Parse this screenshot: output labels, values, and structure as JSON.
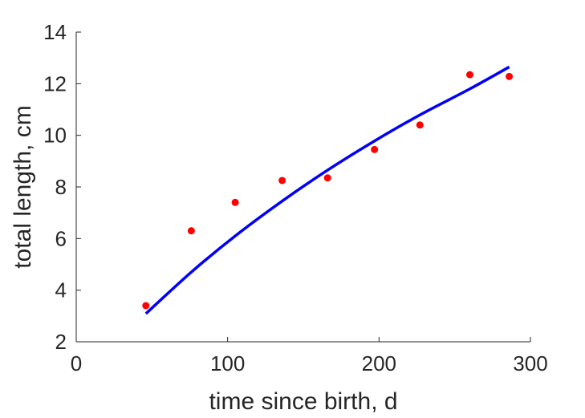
{
  "chart_data": {
    "type": "scatter",
    "title": "",
    "xlabel": "time since birth, d",
    "ylabel": "total length, cm",
    "xlim": [
      0,
      300
    ],
    "ylim": [
      2,
      14
    ],
    "xticks": [
      0,
      100,
      200,
      300
    ],
    "yticks": [
      2,
      4,
      6,
      8,
      10,
      12,
      14
    ],
    "xtick_labels": [
      "0",
      "100",
      "200",
      "300"
    ],
    "ytick_labels": [
      "2",
      "4",
      "6",
      "8",
      "10",
      "12",
      "14"
    ],
    "grid": false,
    "series": [
      {
        "kind": "points",
        "color": "#ff0000",
        "x": [
          46,
          76,
          105,
          136,
          166,
          197,
          227,
          260,
          286
        ],
        "y": [
          3.4,
          6.3,
          7.4,
          8.25,
          8.35,
          9.45,
          10.4,
          12.35,
          12.28
        ]
      },
      {
        "kind": "line",
        "color": "#0000ff",
        "x": [
          46,
          76,
          105,
          136,
          166,
          197,
          227,
          260,
          286
        ],
        "y": [
          3.09,
          4.7,
          6.1,
          7.45,
          8.65,
          9.78,
          10.79,
          11.8,
          12.65
        ]
      }
    ]
  }
}
